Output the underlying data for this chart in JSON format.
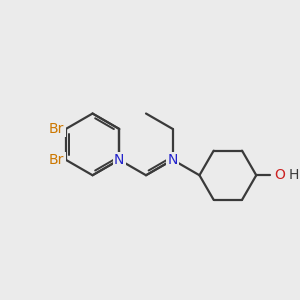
{
  "bg_color": "#ebebeb",
  "bond_color": "#3a3a3a",
  "N_color": "#2222cc",
  "O_color": "#cc2222",
  "Br_color": "#cc7700",
  "H_color": "#3a3a3a",
  "bond_lw": 1.6,
  "font_size": 10,
  "xlim": [
    0,
    10
  ],
  "ylim": [
    0,
    10
  ]
}
